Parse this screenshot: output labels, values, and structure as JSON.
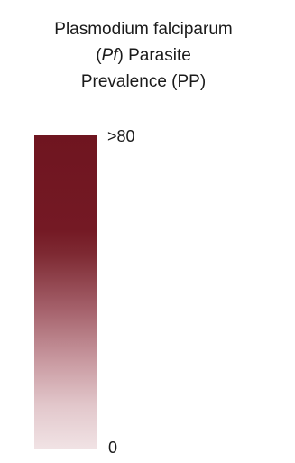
{
  "chart_data": {
    "type": "heatmap",
    "title_lines": [
      "Plasmodium falciparum",
      "(Pf) Parasite",
      "Prevalence (PP)"
    ],
    "title": {
      "line1": "Plasmodium falciparum",
      "line2_italic": "Pf",
      "line2_open": "(",
      "line2_close": ") Parasite",
      "line3": "Prevalence (PP)"
    },
    "colorbar": {
      "tick_labels": [
        ">80",
        "0"
      ],
      "range": [
        0,
        80
      ],
      "color_low": "#f1e3e5",
      "color_high": "#6f1520",
      "orientation": "vertical"
    }
  }
}
